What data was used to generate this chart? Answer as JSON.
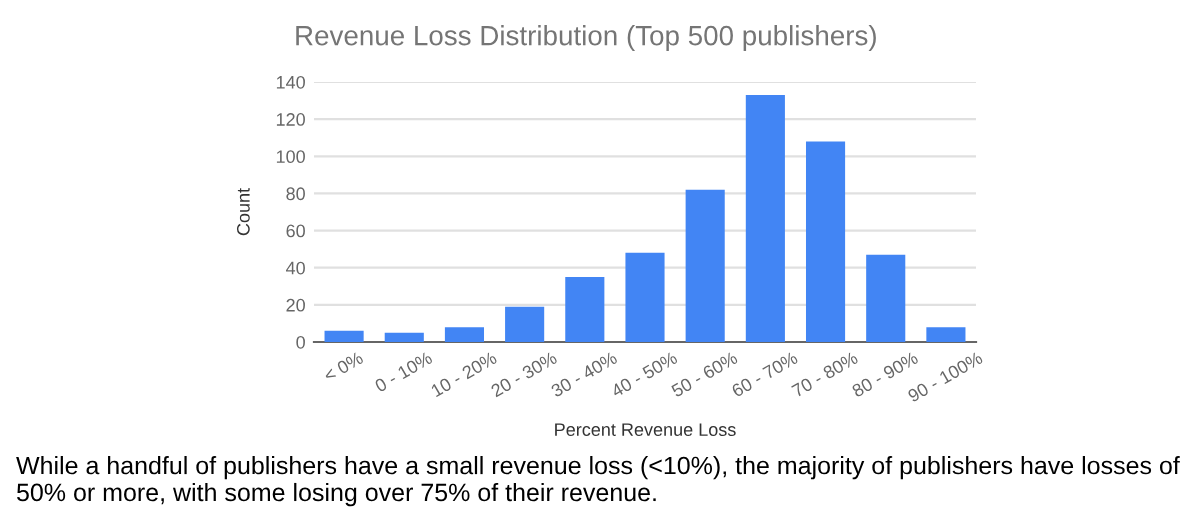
{
  "chart_data": {
    "type": "bar",
    "title": "Revenue Loss Distribution (Top 500 publishers)",
    "xlabel": "Percent Revenue Loss",
    "ylabel": "Count",
    "categories": [
      "< 0%",
      "0 - 10%",
      "10 - 20%",
      "20 - 30%",
      "30 - 40%",
      "40 - 50%",
      "50 - 60%",
      "60 - 70%",
      "70 - 80%",
      "80 - 90%",
      "90 - 100%"
    ],
    "values": [
      6,
      5,
      8,
      19,
      35,
      48,
      82,
      133,
      108,
      47,
      8
    ],
    "color": "#4285f4",
    "ylim": [
      0,
      140
    ],
    "yticks": [
      0,
      20,
      40,
      60,
      80,
      100,
      120,
      140
    ],
    "grid": "y",
    "annotations": [
      "While a handful of publishers have a small revenue loss (<10%), the majority of publishers have losses of 50% or more, with some losing over 75% of their revenue."
    ]
  }
}
